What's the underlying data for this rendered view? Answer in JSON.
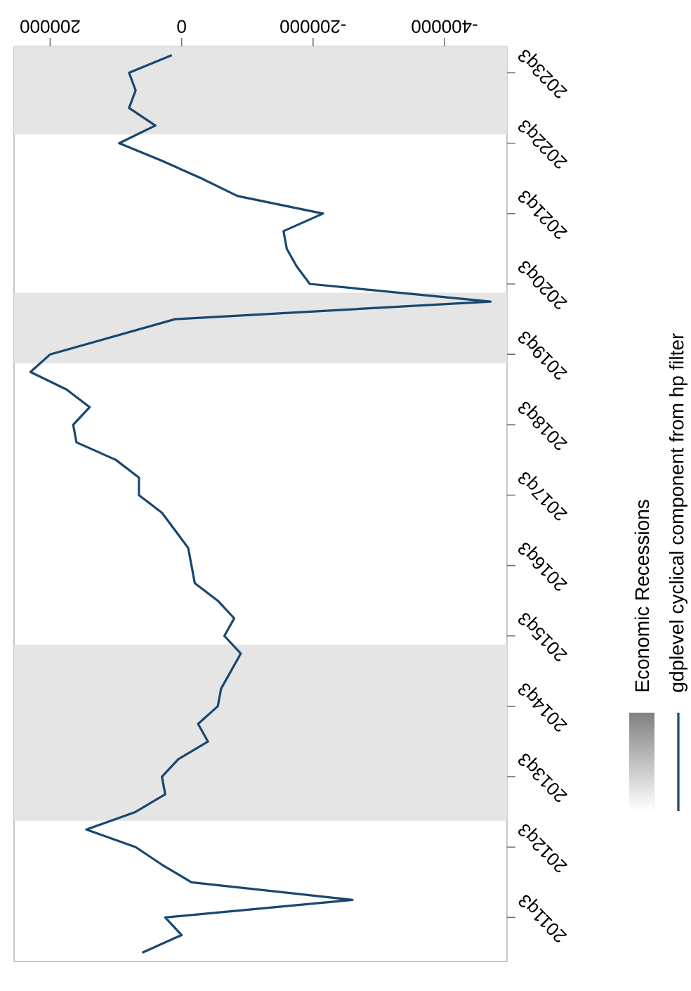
{
  "chart_data": {
    "type": "line",
    "orientation": "horizontal",
    "categories": [
      null,
      "2023q3",
      null,
      null,
      null,
      "2022q3",
      null,
      null,
      null,
      "2021q3",
      null,
      null,
      null,
      "2020q3",
      null,
      null,
      null,
      "2019q3",
      null,
      null,
      null,
      "2018q3",
      null,
      null,
      null,
      "2017q3",
      null,
      null,
      null,
      "2016q3",
      null,
      null,
      null,
      "2015q3",
      null,
      null,
      null,
      "2014q3",
      null,
      null,
      null,
      "2013q3",
      null,
      null,
      null,
      "2012q3",
      null,
      null,
      null,
      "2011q3",
      null,
      null
    ],
    "series": [
      {
        "name": "gdplevel cyclical component from hp filter",
        "color": "#1a476f",
        "values": [
          15000,
          80000,
          70000,
          80000,
          40000,
          95000,
          30000,
          -30000,
          -85000,
          -215000,
          -155000,
          -160000,
          -175000,
          -195000,
          -470000,
          10000,
          105000,
          200000,
          230000,
          175000,
          140000,
          165000,
          160000,
          100000,
          65000,
          65000,
          30000,
          10000,
          -10000,
          -15000,
          -20000,
          -55000,
          -80000,
          -65000,
          -90000,
          -75000,
          -60000,
          -55000,
          -25000,
          -40000,
          5000,
          30000,
          25000,
          70000,
          145000,
          70000,
          30000,
          -15000,
          -260000,
          25000,
          0,
          60000
        ]
      }
    ],
    "xlim": [
      255000,
      -495000
    ],
    "xticks": [
      -400000,
      -200000,
      0,
      200000
    ],
    "annotations": [
      "Economic Recessions"
    ],
    "legend": "right"
  }
}
